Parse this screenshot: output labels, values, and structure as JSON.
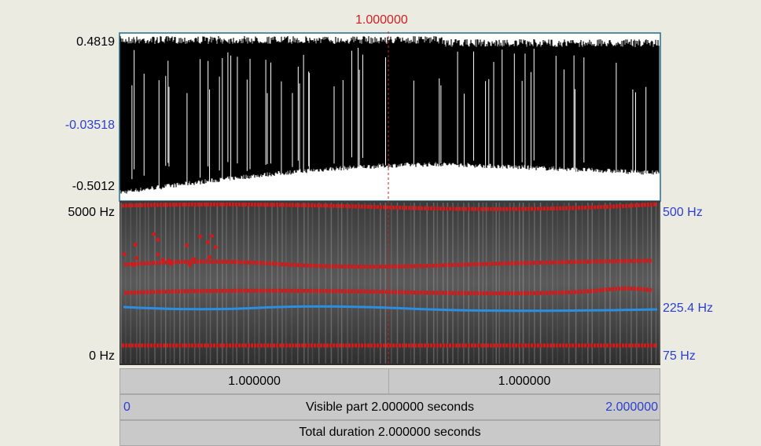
{
  "cursor": {
    "time": "1.000000"
  },
  "waveform": {
    "max": "0.4819",
    "center": "-0.03518",
    "min": "-0.5012"
  },
  "spectrogram": {
    "top": "5000 Hz",
    "bottom": "0 Hz"
  },
  "pitch": {
    "top": "500 Hz",
    "current": "225.4 Hz",
    "bottom": "75 Hz"
  },
  "bars": {
    "left": "1.000000",
    "right": "1.000000",
    "visible": {
      "start": "0",
      "label": "Visible part 2.000000 seconds",
      "end": "2.000000"
    },
    "total": "Total duration 2.000000 seconds"
  }
}
